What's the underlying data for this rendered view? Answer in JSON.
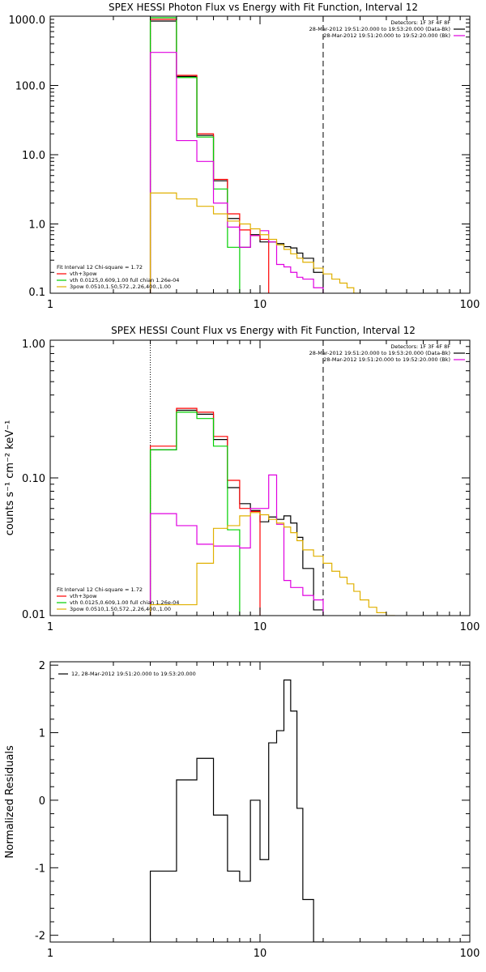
{
  "colors": {
    "black": "#000000",
    "red": "#ff0000",
    "green": "#00d000",
    "magenta": "#e000e0",
    "yellow": "#e0b000"
  },
  "chart_data": [
    {
      "type": "line",
      "title": "SPEX HESSI Photon Flux vs Energy with Fit Function, Interval 12",
      "xlabel": "",
      "ylabel": "",
      "xscale": "log",
      "yscale": "log",
      "xlim": [
        1,
        100
      ],
      "ylim": [
        0.1,
        1000
      ],
      "xticks": [
        {
          "v": 1,
          "label": "1"
        },
        {
          "v": 10,
          "label": "10"
        },
        {
          "v": 100,
          "label": "100"
        }
      ],
      "yticks": [
        {
          "v": 0.1,
          "label": "0.1"
        },
        {
          "v": 1,
          "label": "1.0"
        },
        {
          "v": 10,
          "label": "10.0"
        },
        {
          "v": 100,
          "label": "100.0"
        },
        {
          "v": 1000,
          "label": "1000.0"
        }
      ],
      "vlines": [
        {
          "x": 3,
          "style": "dotted"
        },
        {
          "x": 20,
          "style": "dashed"
        }
      ],
      "header_right": [
        "Detectors: 1F 3F 4F 8F",
        "28-Mar-2012 19:51:20.000 to 19:53:20.000 (Data-Bk)",
        "28-Mar-2012 19:51:20.000 to 19:52:20.000 (Bk)"
      ],
      "header_series_colors": [
        "black",
        "magenta"
      ],
      "legend_text": "Fit Interval 12    Chi-square = 1.72",
      "legend": [
        {
          "label": "vth+3pow",
          "color": "red"
        },
        {
          "label": "vth 0.0125,0.609,1.00  full chian 1.26e-04",
          "color": "green"
        },
        {
          "label": "3pow 0.0510,1.50,572.,2.26,400.,1.00",
          "color": "yellow"
        }
      ],
      "series": [
        {
          "name": "Data-Bk",
          "color": "black",
          "edges": [
            3,
            4,
            5,
            6,
            7,
            8,
            9,
            10,
            11,
            12,
            13,
            14,
            15,
            16,
            18,
            20
          ],
          "values": [
            850,
            135,
            19,
            4.2,
            1.2,
            0.46,
            0.7,
            0.55,
            0.55,
            0.52,
            0.47,
            0.45,
            0.38,
            0.32,
            0.2
          ]
        },
        {
          "name": "vth+3pow",
          "color": "red",
          "edges": [
            3,
            4,
            5,
            6,
            7,
            8,
            9,
            10,
            11
          ],
          "values": [
            900,
            140,
            20,
            4.4,
            1.4,
            0.82,
            0.68,
            0.6
          ]
        },
        {
          "name": "vth",
          "color": "green",
          "edges": [
            3,
            4,
            5,
            6,
            7,
            8
          ],
          "values": [
            950,
            130,
            18,
            3.2,
            0.46
          ]
        },
        {
          "name": "Bk",
          "color": "magenta",
          "edges": [
            3,
            4,
            5,
            6,
            7,
            8,
            9,
            10,
            11,
            12,
            13,
            14,
            15,
            16,
            18,
            20
          ],
          "values": [
            300,
            16,
            8,
            2,
            0.9,
            0.46,
            0.68,
            0.8,
            0.55,
            0.26,
            0.24,
            0.2,
            0.17,
            0.16,
            0.12
          ]
        },
        {
          "name": "3pow",
          "color": "yellow",
          "edges": [
            3,
            4,
            5,
            6,
            7,
            8,
            9,
            10,
            11,
            12,
            13,
            14,
            15,
            16,
            18,
            20,
            22,
            24,
            26,
            28,
            30
          ],
          "values": [
            2.8,
            2.3,
            1.8,
            1.4,
            1.1,
            1.0,
            0.85,
            0.7,
            0.6,
            0.5,
            0.43,
            0.37,
            0.32,
            0.28,
            0.23,
            0.19,
            0.16,
            0.14,
            0.12,
            0.1
          ]
        }
      ]
    },
    {
      "type": "line",
      "title": "SPEX HESSI Count Flux vs Energy with Fit Function, Interval 12",
      "xlabel": "",
      "ylabel": "counts s⁻¹ cm⁻² keV⁻¹",
      "xscale": "log",
      "yscale": "log",
      "xlim": [
        1,
        100
      ],
      "ylim": [
        0.01,
        1
      ],
      "xticks": [
        {
          "v": 1,
          "label": "1"
        },
        {
          "v": 10,
          "label": "10"
        },
        {
          "v": 100,
          "label": "100"
        }
      ],
      "yticks": [
        {
          "v": 0.01,
          "label": "0.01"
        },
        {
          "v": 0.1,
          "label": "0.10"
        },
        {
          "v": 1,
          "label": "1.00"
        }
      ],
      "vlines": [
        {
          "x": 3,
          "style": "dotted"
        },
        {
          "x": 20,
          "style": "dashed"
        }
      ],
      "header_right": [
        "Detectors: 1F 3F 4F 8F",
        "28-Mar-2012 19:51:20.000 to 19:53:20.000 (Data-Bk)",
        "28-Mar-2012 19:51:20.000 to 19:52:20.000 (Bk)"
      ],
      "header_series_colors": [
        "black",
        "magenta"
      ],
      "legend_text": "Fit Interval 12    Chi-square = 1.72",
      "legend": [
        {
          "label": "vth+3pow",
          "color": "red"
        },
        {
          "label": "vth 0.0125,0.609,1.00  full chian 1.26e-04",
          "color": "green"
        },
        {
          "label": "3pow 0.0510,1.50,572.,2.26,400.,1.00",
          "color": "yellow"
        }
      ],
      "series": [
        {
          "name": "Data-Bk",
          "color": "black",
          "edges": [
            3,
            4,
            5,
            6,
            7,
            8,
            9,
            10,
            11,
            12,
            13,
            14,
            15,
            16,
            18,
            20
          ],
          "values": [
            0.16,
            0.31,
            0.29,
            0.19,
            0.085,
            0.065,
            0.058,
            0.048,
            0.052,
            0.05,
            0.053,
            0.047,
            0.037,
            0.022,
            0.011
          ]
        },
        {
          "name": "vth+3pow",
          "color": "red",
          "edges": [
            3,
            4,
            5,
            6,
            7,
            8,
            9,
            10
          ],
          "values": [
            0.17,
            0.32,
            0.3,
            0.2,
            0.096,
            0.06,
            0.057
          ]
        },
        {
          "name": "vth",
          "color": "green",
          "edges": [
            3,
            4,
            5,
            6,
            7,
            8
          ],
          "values": [
            0.16,
            0.3,
            0.27,
            0.17,
            0.042
          ]
        },
        {
          "name": "Bk",
          "color": "magenta",
          "edges": [
            3,
            4,
            5,
            6,
            7,
            8,
            9,
            10,
            11,
            12,
            13,
            14,
            15,
            16,
            18,
            20
          ],
          "values": [
            0.055,
            0.045,
            0.033,
            0.032,
            0.032,
            0.031,
            0.06,
            0.06,
            0.105,
            0.046,
            0.018,
            0.016,
            0.016,
            0.014,
            0.013
          ]
        },
        {
          "name": "3pow",
          "color": "yellow",
          "edges": [
            3,
            4,
            5,
            6,
            7,
            8,
            9,
            10,
            11,
            12,
            13,
            14,
            15,
            16,
            18,
            20,
            22,
            24,
            26,
            28,
            30,
            33,
            36,
            40,
            44
          ],
          "values": [
            0.012,
            0.012,
            0.024,
            0.043,
            0.045,
            0.053,
            0.056,
            0.054,
            0.05,
            0.047,
            0.044,
            0.04,
            0.035,
            0.03,
            0.027,
            0.024,
            0.021,
            0.019,
            0.017,
            0.015,
            0.013,
            0.0115,
            0.0105,
            0.01
          ]
        }
      ]
    },
    {
      "type": "line",
      "title": "",
      "xlabel": "",
      "ylabel": "Normalized  Residuals",
      "xscale": "log",
      "yscale": "linear",
      "xlim": [
        1,
        100
      ],
      "ylim": [
        -2.1,
        2.05
      ],
      "xticks": [
        {
          "v": 1,
          "label": "1"
        },
        {
          "v": 10,
          "label": "10"
        },
        {
          "v": 100,
          "label": "100"
        }
      ],
      "yticks": [
        {
          "v": -2,
          "label": "-2"
        },
        {
          "v": -1,
          "label": "-1"
        },
        {
          "v": 0,
          "label": "0"
        },
        {
          "v": 1,
          "label": "1"
        },
        {
          "v": 2,
          "label": "2"
        }
      ],
      "vlines": [],
      "legend_text": "",
      "legend": [
        {
          "label": "12, 28-Mar-2012 19:51:20.000 to 19:53:20.000",
          "color": "black"
        }
      ],
      "series": [
        {
          "name": "",
          "color": "black",
          "edges": [
            3,
            4,
            5,
            6,
            7,
            8,
            9,
            10,
            11,
            12,
            13,
            14,
            15,
            16,
            18,
            20
          ],
          "values": [
            -1.05,
            0.3,
            0.62,
            -0.22,
            -1.05,
            -1.2,
            0.0,
            -0.88,
            0.85,
            1.03,
            1.78,
            1.32,
            -0.12,
            -1.47,
            -2.1
          ]
        }
      ]
    }
  ]
}
